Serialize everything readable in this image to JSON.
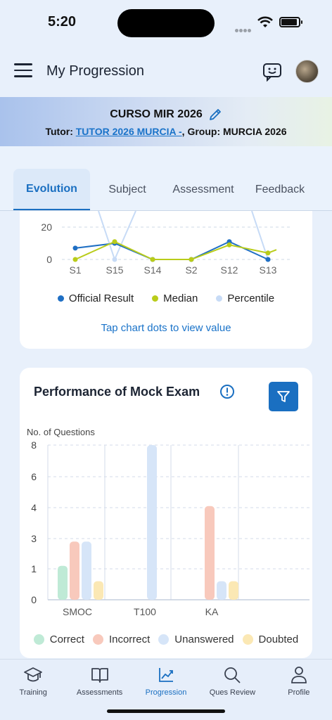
{
  "status": {
    "time": "5:20"
  },
  "header": {
    "title": "My Progression"
  },
  "course": {
    "title": "CURSO MIR 2026",
    "tutor_prefix": "Tutor: ",
    "tutor_name": "TUTOR 2026 MURCIA -",
    "group_text": ", Group: MURCIA 2026"
  },
  "tabs": [
    {
      "label": "Evolution",
      "active": true
    },
    {
      "label": "Subject"
    },
    {
      "label": "Assessment"
    },
    {
      "label": "Feedback"
    }
  ],
  "evolution": {
    "legend": [
      "Official Result",
      "Median",
      "Percentile"
    ],
    "hint": "Tap chart dots to view value"
  },
  "performance": {
    "title": "Performance of Mock Exam",
    "ylabel": "No. of Questions",
    "legend": [
      "Correct",
      "Incorrect",
      "Unanswered",
      "Doubted"
    ]
  },
  "nav": [
    {
      "label": "Training",
      "icon": "graduation-cap-icon"
    },
    {
      "label": "Assessments",
      "icon": "book-icon"
    },
    {
      "label": "Progression",
      "icon": "chart-icon",
      "active": true
    },
    {
      "label": "Ques Review",
      "icon": "search-icon"
    },
    {
      "label": "Profile",
      "icon": "person-icon"
    }
  ],
  "colors": {
    "accent": "#1a6fc1",
    "official": "#1f6fc4",
    "median": "#b9cc1a",
    "percentile": "#c7dbf6",
    "correct": "#bfead6",
    "incorrect": "#f8c9bc",
    "unanswered": "#d6e5f8",
    "doubted": "#fbe8b4"
  },
  "chart_data": [
    {
      "type": "line",
      "categories": [
        "S1",
        "S15",
        "S14",
        "S2",
        "S12",
        "S13"
      ],
      "yticks": [
        0,
        20
      ],
      "series": [
        {
          "name": "Official Result",
          "values": [
            7,
            10,
            0,
            0,
            11,
            0
          ]
        },
        {
          "name": "Median",
          "values": [
            0,
            11,
            0,
            0,
            9,
            4
          ]
        },
        {
          "name": "Percentile",
          "values": [
            null,
            0,
            null,
            null,
            null,
            0
          ]
        }
      ]
    },
    {
      "type": "bar",
      "categories": [
        "SMOC",
        "T100",
        "KA"
      ],
      "yticks": [
        0,
        1,
        3,
        4,
        6,
        8
      ],
      "ylabel": "No. of Questions",
      "series": [
        {
          "name": "Correct",
          "values": [
            1.2,
            0,
            0
          ]
        },
        {
          "name": "Incorrect",
          "values": [
            2.8,
            0,
            4.1
          ]
        },
        {
          "name": "Unanswered",
          "values": [
            2.8,
            8,
            0.6
          ]
        },
        {
          "name": "Doubted",
          "values": [
            0.6,
            0,
            0.6
          ]
        }
      ]
    }
  ]
}
